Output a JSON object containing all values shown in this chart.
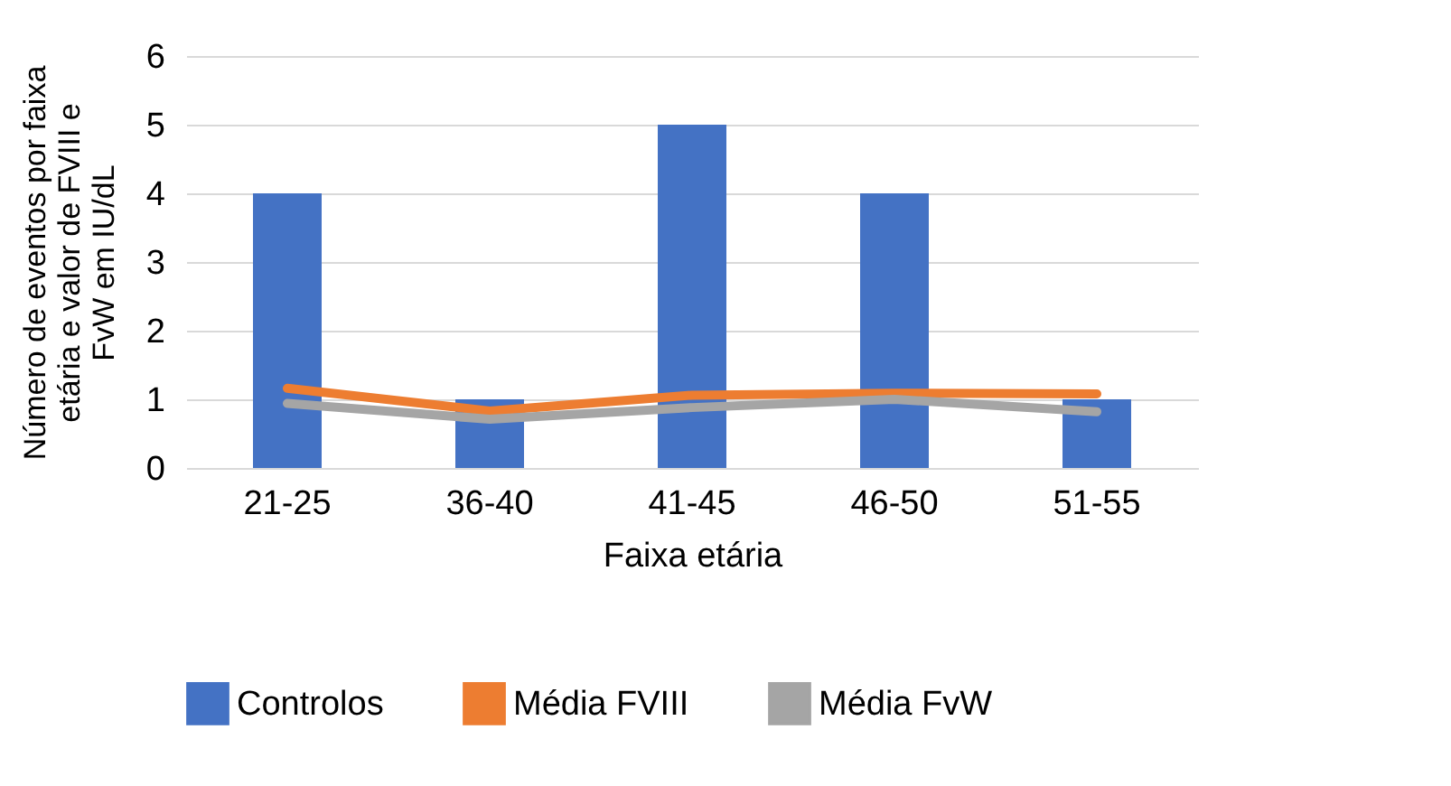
{
  "chart_data": {
    "type": "bar",
    "xlabel": "Faixa etária",
    "ylabel": "Número de eventos por faixa etária e valor de FVIII e FvW em IU/dL",
    "categories": [
      "21-25",
      "36-40",
      "41-45",
      "46-50",
      "51-55"
    ],
    "series": [
      {
        "name": "Controlos",
        "color": "#4472c4",
        "values": [
          4,
          1,
          5,
          4,
          1
        ]
      },
      {
        "name": "Média FVIII",
        "type": "line",
        "color": "#ed7d31",
        "values": [
          1.16,
          0.83,
          1.06,
          1.09,
          1.08
        ]
      },
      {
        "name": "Média FvW",
        "type": "line",
        "color": "#a5a5a5",
        "values": [
          0.94,
          0.71,
          0.88,
          1.0,
          0.82
        ]
      }
    ],
    "ylim": [
      0,
      6
    ],
    "yticks": [
      0,
      1,
      2,
      3,
      4,
      5,
      6
    ],
    "grid": "y",
    "legend": "bottom"
  }
}
